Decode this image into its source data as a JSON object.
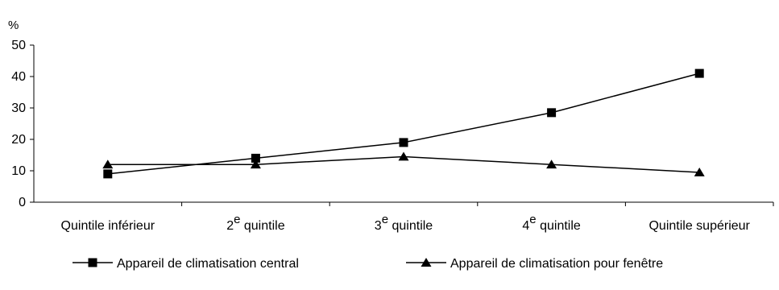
{
  "chart_data": {
    "type": "line",
    "title": "",
    "ylabel": "%",
    "xlabel": "",
    "ylim": [
      0,
      50
    ],
    "yticks": [
      0,
      10,
      20,
      30,
      40,
      50
    ],
    "grid": false,
    "legend_position": "bottom",
    "categories": [
      {
        "main": "Quintile inférieur",
        "sup": ""
      },
      {
        "main": "2",
        "sup": "e",
        "rest": " quintile"
      },
      {
        "main": "3",
        "sup": "e",
        "rest": " quintile"
      },
      {
        "main": "4",
        "sup": "e",
        "rest": " quintile"
      },
      {
        "main": "Quintile supérieur",
        "sup": ""
      }
    ],
    "series": [
      {
        "name": "Appareil de climatisation central",
        "marker": "square",
        "color": "#000000",
        "values": [
          9,
          14,
          19,
          28.5,
          41
        ]
      },
      {
        "name": "Appareil de climatisation pour fenêtre",
        "marker": "triangle",
        "color": "#000000",
        "values": [
          12,
          12,
          14.5,
          12,
          9.5
        ]
      }
    ]
  }
}
